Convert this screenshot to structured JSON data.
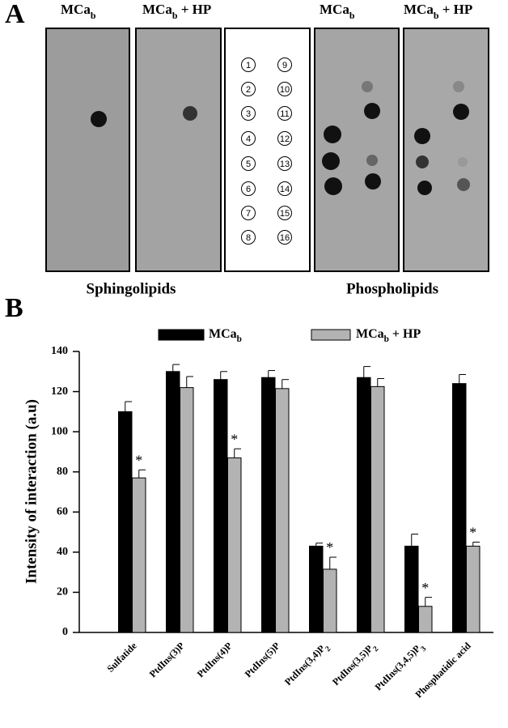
{
  "panel_a": {
    "panel_label": "A",
    "headers": [
      {
        "text": "MCa",
        "sub": "b"
      },
      {
        "text": "MCa",
        "sub": "b",
        "suffix": " + HP"
      },
      {
        "text": "MCa",
        "sub": "b"
      },
      {
        "text": "MCa",
        "sub": "b",
        "suffix": " + HP"
      }
    ],
    "spot_numbers": [
      1,
      2,
      3,
      4,
      5,
      6,
      7,
      8,
      9,
      10,
      11,
      12,
      13,
      14,
      15,
      16
    ],
    "group_labels": [
      "Sphingolipids",
      "Phospholipids"
    ]
  },
  "chart_data": {
    "type": "bar",
    "panel_label": "B",
    "y_label": "Intensity of interaction (a.u)",
    "categories": [
      "Sulfatide",
      "PtdIns(3)P",
      "PtdIns(4)P",
      "PtdIns(5)P",
      "PtdIns(3,4)P",
      "PtdIns(3,5)P",
      "PtdIns(3,4,5)P",
      "Phosphatidic acid"
    ],
    "category_subs": [
      null,
      null,
      null,
      null,
      "2",
      "2",
      "3",
      null
    ],
    "series": [
      {
        "name": "MCa",
        "name_sub": "b",
        "color": "#000000",
        "values": [
          110,
          130,
          126,
          127,
          43,
          127,
          43,
          124
        ],
        "errors": [
          5,
          3.5,
          4,
          3.5,
          1.5,
          5.5,
          6,
          4.5
        ]
      },
      {
        "name": "MCa",
        "name_sub": "b",
        "name_suffix": " + HP",
        "color": "#b3b3b3",
        "values": [
          77,
          122,
          87,
          121.5,
          31.5,
          122.5,
          13,
          43
        ],
        "errors": [
          4,
          5.5,
          4.5,
          4.5,
          6,
          4,
          4.5,
          2
        ],
        "significance_label": "*",
        "significant": [
          true,
          false,
          true,
          false,
          true,
          false,
          true,
          true
        ]
      }
    ],
    "ylim": [
      0,
      140
    ],
    "yticks": [
      0,
      20,
      40,
      60,
      80,
      100,
      120,
      140
    ]
  }
}
